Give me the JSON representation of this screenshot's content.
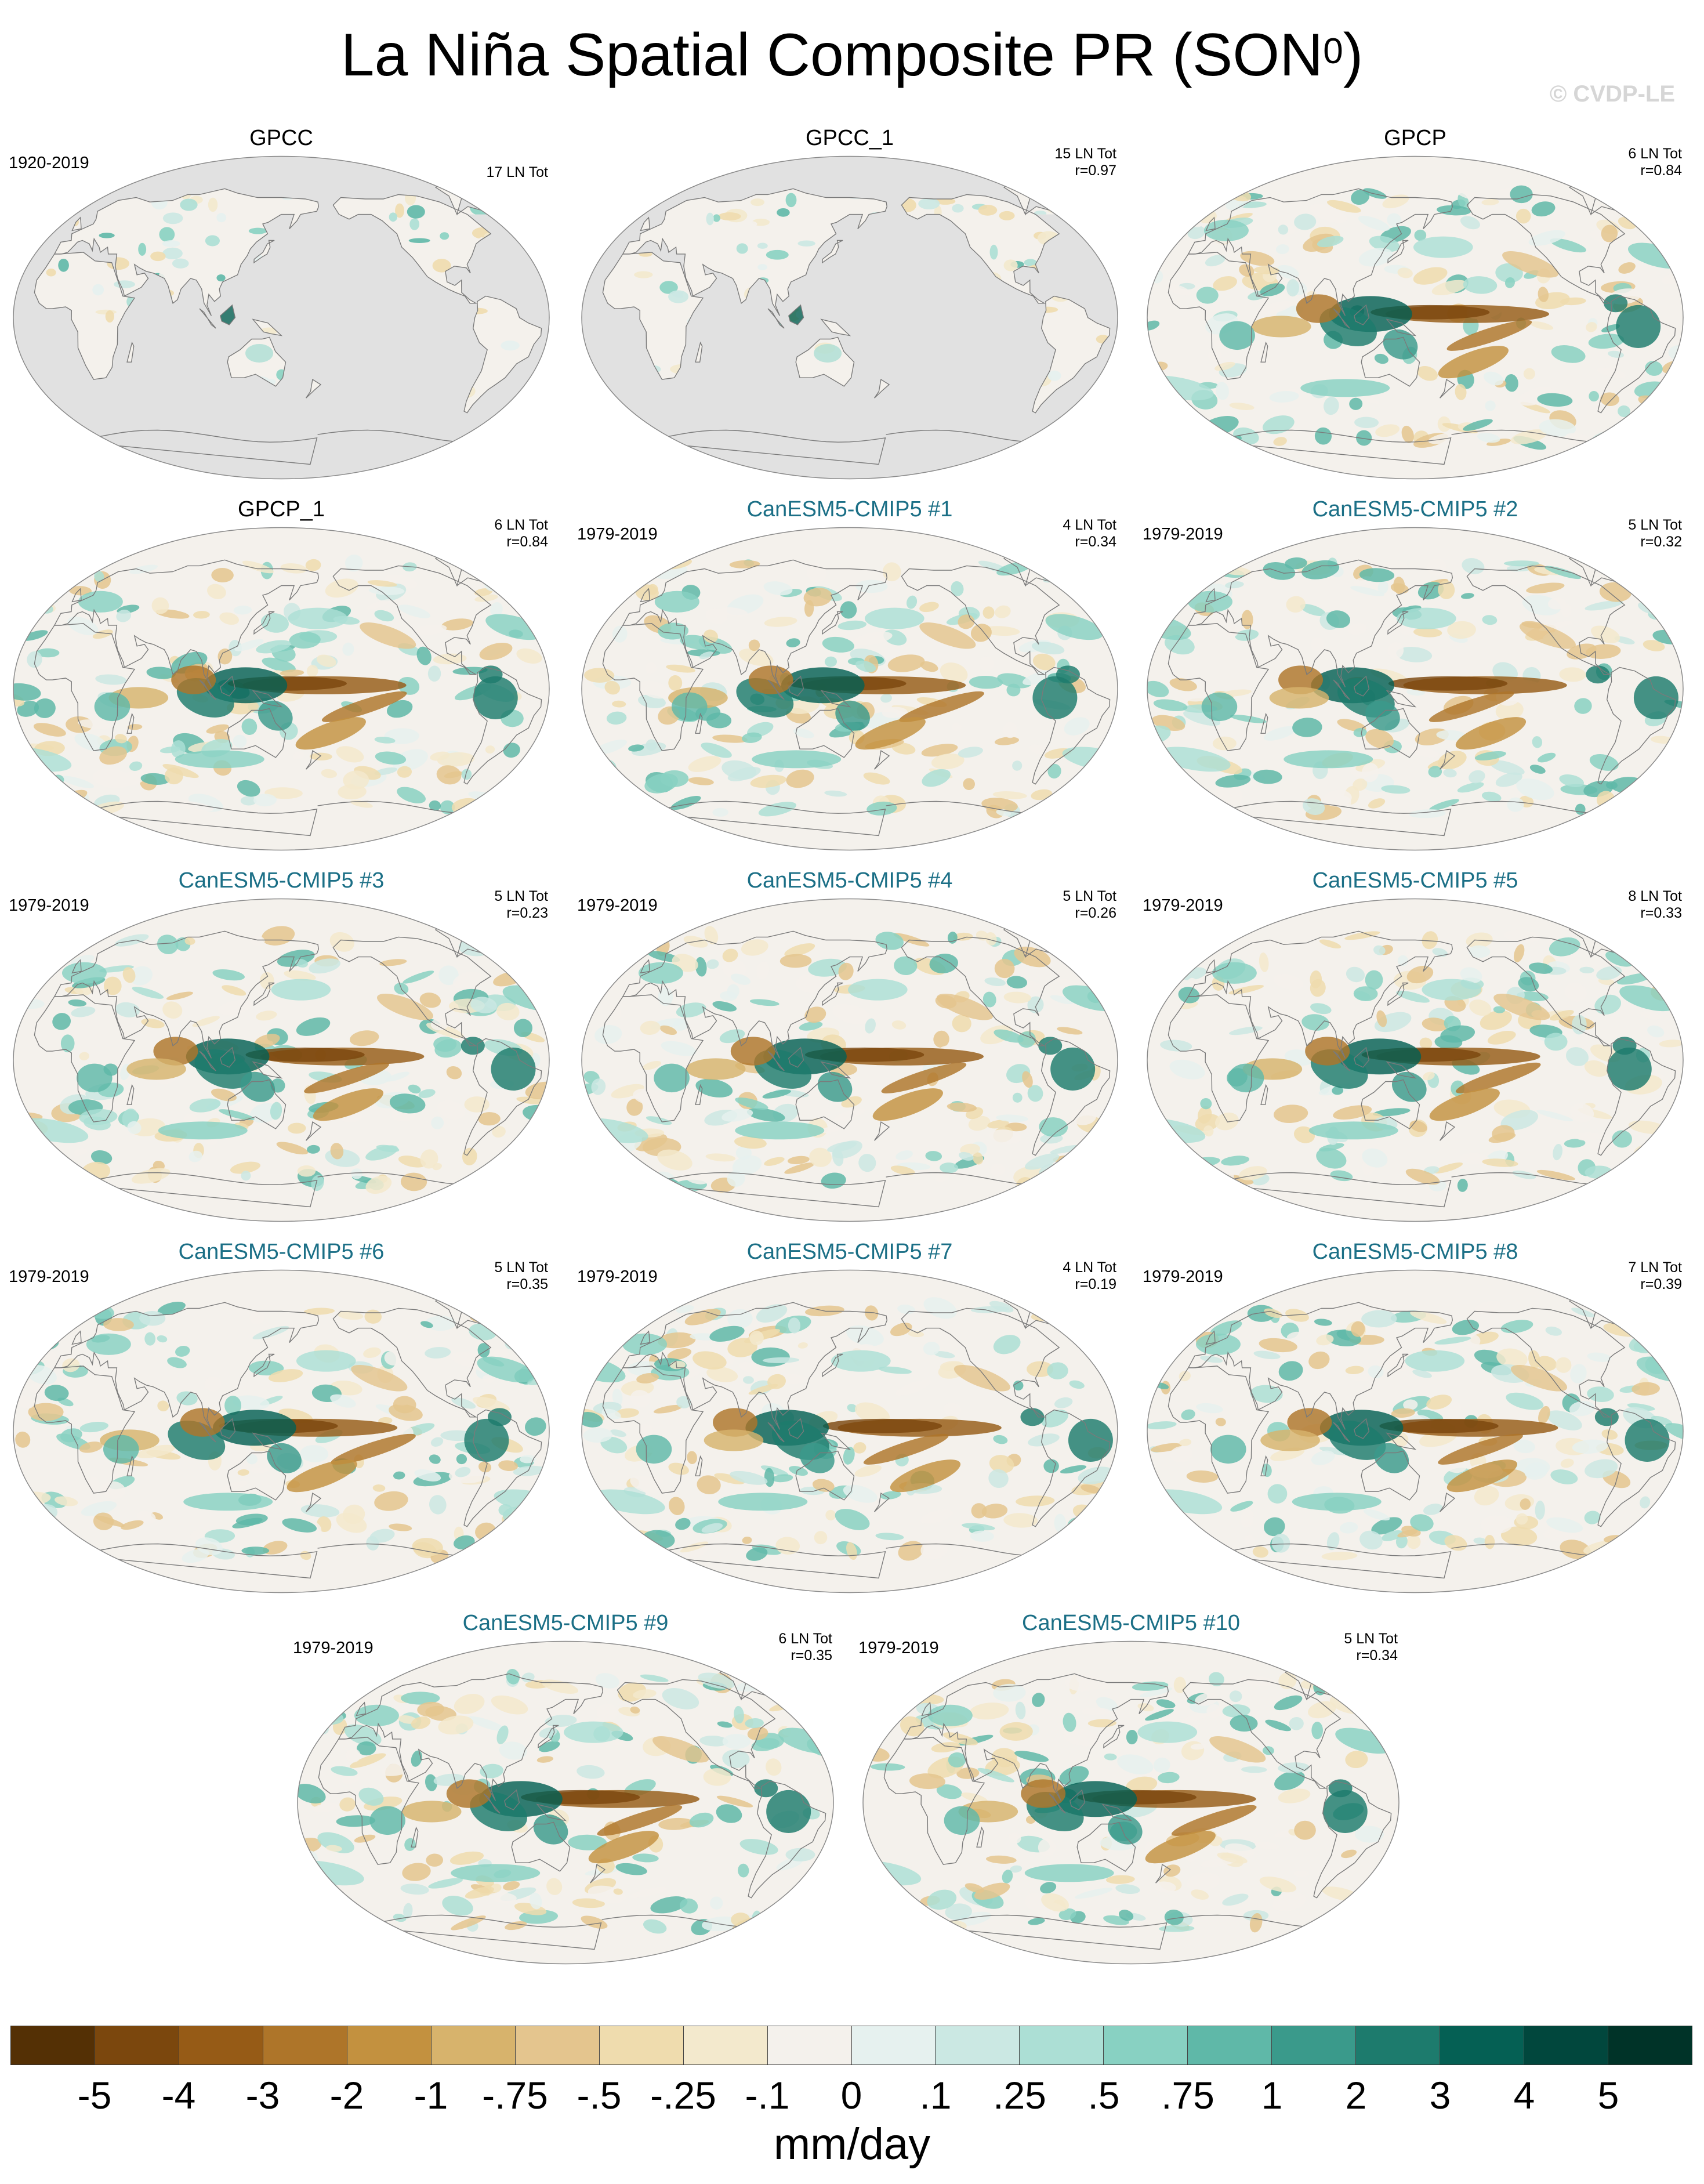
{
  "title": "La Niña Spatial Composite PR (SON",
  "title_superscript": "0",
  "title_suffix": ")",
  "watermark": "© CVDP-LE",
  "projection": "Robinson, Pacific-centered",
  "colors": {
    "ocean_missing": "#e1e1e1",
    "model_title": "#1b6f86",
    "coastline": "#7a7a7a"
  },
  "panels": [
    {
      "title": "GPCC",
      "is_model": false,
      "period": "1920-2019",
      "count": "17 LN Tot",
      "r": "",
      "coverage": "land"
    },
    {
      "title": "GPCC_1",
      "is_model": false,
      "period": "",
      "count": "15 LN Tot",
      "r": "r=0.97",
      "coverage": "land"
    },
    {
      "title": "GPCP",
      "is_model": false,
      "period": "",
      "count": "6 LN Tot",
      "r": "r=0.84",
      "coverage": "global"
    },
    {
      "title": "GPCP_1",
      "is_model": false,
      "period": "",
      "count": "6 LN Tot",
      "r": "r=0.84",
      "coverage": "global"
    },
    {
      "title": "CanESM5-CMIP5 #1",
      "is_model": true,
      "period": "1979-2019",
      "count": "4 LN Tot",
      "r": "r=0.34",
      "coverage": "global"
    },
    {
      "title": "CanESM5-CMIP5 #2",
      "is_model": true,
      "period": "1979-2019",
      "count": "5 LN Tot",
      "r": "r=0.32",
      "coverage": "global"
    },
    {
      "title": "CanESM5-CMIP5 #3",
      "is_model": true,
      "period": "1979-2019",
      "count": "5 LN Tot",
      "r": "r=0.23",
      "coverage": "global"
    },
    {
      "title": "CanESM5-CMIP5 #4",
      "is_model": true,
      "period": "1979-2019",
      "count": "5 LN Tot",
      "r": "r=0.26",
      "coverage": "global"
    },
    {
      "title": "CanESM5-CMIP5 #5",
      "is_model": true,
      "period": "1979-2019",
      "count": "8 LN Tot",
      "r": "r=0.33",
      "coverage": "global"
    },
    {
      "title": "CanESM5-CMIP5 #6",
      "is_model": true,
      "period": "1979-2019",
      "count": "5 LN Tot",
      "r": "r=0.35",
      "coverage": "global"
    },
    {
      "title": "CanESM5-CMIP5 #7",
      "is_model": true,
      "period": "1979-2019",
      "count": "4 LN Tot",
      "r": "r=0.19",
      "coverage": "global"
    },
    {
      "title": "CanESM5-CMIP5 #8",
      "is_model": true,
      "period": "1979-2019",
      "count": "7 LN Tot",
      "r": "r=0.39",
      "coverage": "global"
    },
    {
      "title": "CanESM5-CMIP5 #9",
      "is_model": true,
      "period": "1979-2019",
      "count": "6 LN Tot",
      "r": "r=0.35",
      "coverage": "global"
    },
    {
      "title": "CanESM5-CMIP5 #10",
      "is_model": true,
      "period": "1979-2019",
      "count": "5 LN Tot",
      "r": "r=0.34",
      "coverage": "global"
    }
  ],
  "colorbar": {
    "units": "mm/day",
    "tick_labels": [
      "-5",
      "-4",
      "-3",
      "-2",
      "-1",
      "-.75",
      "-.5",
      "-.25",
      "-.1",
      "0",
      ".1",
      ".25",
      ".5",
      ".75",
      "1",
      "2",
      "3",
      "4",
      "5"
    ],
    "colors": [
      "#543005",
      "#7b470d",
      "#965b16",
      "#ae7529",
      "#c3913f",
      "#d7b36c",
      "#e4c58e",
      "#efdcae",
      "#f3e9cd",
      "#f4f1ec",
      "#e6f1ef",
      "#cbe8e3",
      "#acdfd5",
      "#88d1c2",
      "#5fb8a8",
      "#3a9a8b",
      "#1d7b6d",
      "#056054",
      "#01473d",
      "#003328"
    ]
  }
}
